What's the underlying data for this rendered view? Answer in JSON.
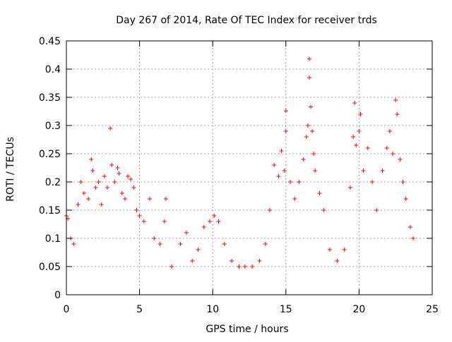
{
  "chart_data": {
    "type": "scatter",
    "title": "Day 267 of 2014, Rate Of TEC Index for receiver trds",
    "xlabel": "GPS time / hours",
    "ylabel": "ROTI / TECUs",
    "xlim": [
      0,
      25
    ],
    "ylim": [
      0,
      0.45
    ],
    "xticks": [
      0,
      5,
      10,
      15,
      20,
      25
    ],
    "yticks": [
      0,
      0.05,
      0.1,
      0.15,
      0.2,
      0.25,
      0.3,
      0.35,
      0.4,
      0.45
    ],
    "grid": true,
    "marker": "+",
    "color": "#ff0000",
    "series": [
      {
        "points": [
          [
            0.0,
            0.14
          ],
          [
            0.1,
            0.135
          ],
          [
            0.3,
            0.1
          ],
          [
            0.5,
            0.09
          ],
          [
            0.8,
            0.16
          ],
          [
            1.0,
            0.2
          ],
          [
            1.2,
            0.18
          ],
          [
            1.5,
            0.17
          ],
          [
            1.7,
            0.24
          ],
          [
            1.8,
            0.22
          ],
          [
            2.0,
            0.19
          ],
          [
            2.2,
            0.2
          ],
          [
            2.4,
            0.16
          ],
          [
            2.6,
            0.21
          ],
          [
            2.8,
            0.19
          ],
          [
            3.0,
            0.295
          ],
          [
            3.1,
            0.23
          ],
          [
            3.3,
            0.2
          ],
          [
            3.5,
            0.225
          ],
          [
            3.6,
            0.215
          ],
          [
            3.8,
            0.18
          ],
          [
            4.0,
            0.17
          ],
          [
            4.2,
            0.21
          ],
          [
            4.4,
            0.205
          ],
          [
            4.6,
            0.19
          ],
          [
            4.8,
            0.15
          ],
          [
            5.0,
            0.14
          ],
          [
            5.3,
            0.13
          ],
          [
            5.7,
            0.17
          ],
          [
            6.0,
            0.1
          ],
          [
            6.4,
            0.09
          ],
          [
            6.8,
            0.17
          ],
          [
            6.7,
            0.13
          ],
          [
            7.2,
            0.05
          ],
          [
            7.8,
            0.09
          ],
          [
            8.2,
            0.11
          ],
          [
            8.6,
            0.06
          ],
          [
            9.0,
            0.08
          ],
          [
            9.4,
            0.12
          ],
          [
            9.8,
            0.13
          ],
          [
            10.1,
            0.14
          ],
          [
            10.4,
            0.13
          ],
          [
            10.8,
            0.09
          ],
          [
            11.3,
            0.06
          ],
          [
            11.8,
            0.05
          ],
          [
            12.2,
            0.05
          ],
          [
            12.7,
            0.05
          ],
          [
            13.2,
            0.06
          ],
          [
            13.6,
            0.09
          ],
          [
            13.9,
            0.15
          ],
          [
            14.2,
            0.23
          ],
          [
            14.5,
            0.21
          ],
          [
            14.7,
            0.255
          ],
          [
            14.9,
            0.22
          ],
          [
            15.0,
            0.326
          ],
          [
            15.0,
            0.29
          ],
          [
            15.3,
            0.2
          ],
          [
            15.6,
            0.17
          ],
          [
            15.9,
            0.2
          ],
          [
            16.2,
            0.24
          ],
          [
            16.4,
            0.28
          ],
          [
            16.5,
            0.3
          ],
          [
            16.6,
            0.418
          ],
          [
            16.6,
            0.385
          ],
          [
            16.7,
            0.333
          ],
          [
            16.8,
            0.29
          ],
          [
            16.9,
            0.25
          ],
          [
            17.0,
            0.22
          ],
          [
            17.3,
            0.18
          ],
          [
            17.6,
            0.15
          ],
          [
            18.0,
            0.08
          ],
          [
            18.5,
            0.06
          ],
          [
            19.0,
            0.08
          ],
          [
            19.4,
            0.19
          ],
          [
            19.6,
            0.28
          ],
          [
            19.7,
            0.34
          ],
          [
            19.8,
            0.265
          ],
          [
            20.0,
            0.29
          ],
          [
            20.1,
            0.32
          ],
          [
            20.3,
            0.22
          ],
          [
            20.6,
            0.26
          ],
          [
            20.9,
            0.2
          ],
          [
            21.2,
            0.15
          ],
          [
            21.6,
            0.22
          ],
          [
            21.9,
            0.26
          ],
          [
            22.1,
            0.29
          ],
          [
            22.3,
            0.25
          ],
          [
            22.5,
            0.345
          ],
          [
            22.6,
            0.32
          ],
          [
            22.8,
            0.24
          ],
          [
            23.0,
            0.2
          ],
          [
            23.2,
            0.17
          ],
          [
            23.5,
            0.12
          ],
          [
            23.7,
            0.1
          ]
        ]
      }
    ]
  }
}
